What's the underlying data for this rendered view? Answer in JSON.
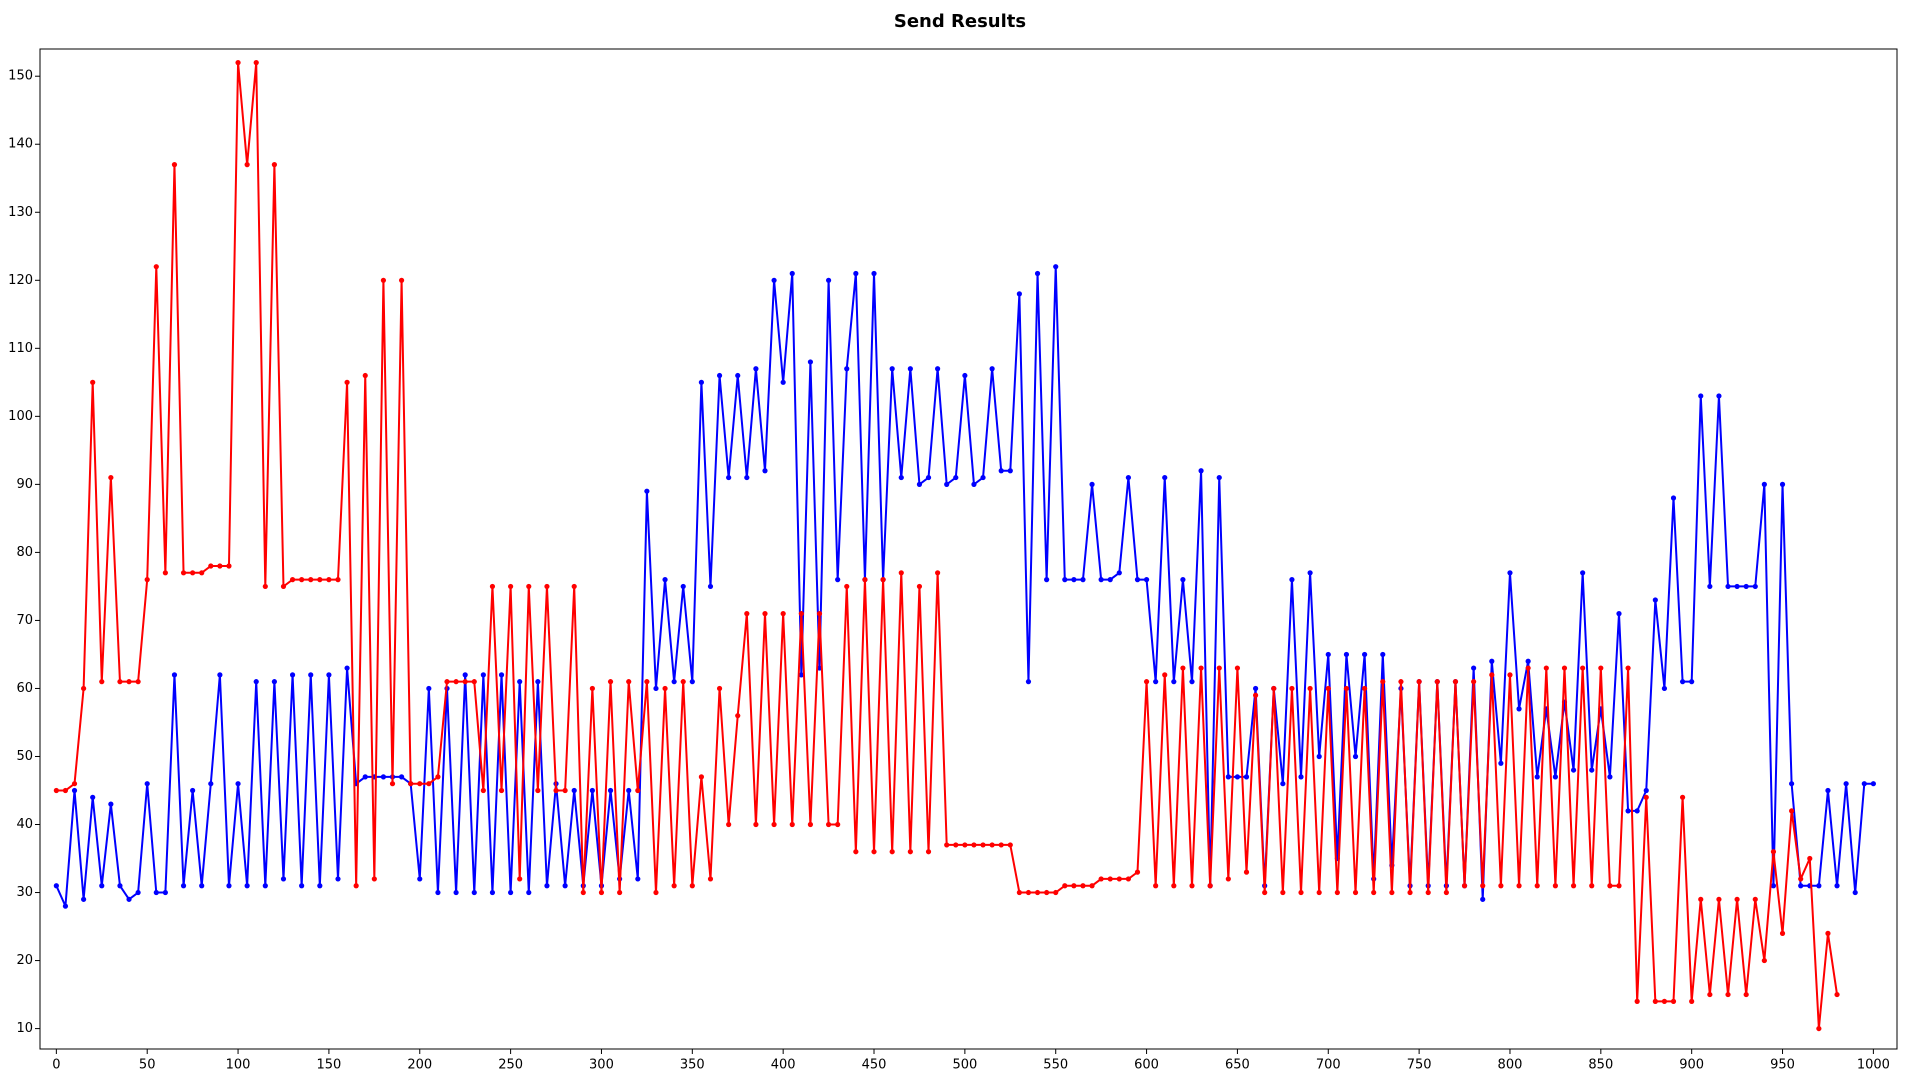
{
  "chart_data": {
    "type": "line",
    "title": "Send Results",
    "xlim": [
      -9,
      1013
    ],
    "ylim": [
      7,
      154
    ],
    "xticks": [
      0,
      50,
      100,
      150,
      200,
      250,
      300,
      350,
      400,
      450,
      500,
      550,
      600,
      650,
      700,
      750,
      800,
      850,
      900,
      950,
      1000
    ],
    "yticks": [
      10,
      20,
      30,
      40,
      50,
      60,
      70,
      80,
      90,
      100,
      110,
      120,
      130,
      140,
      150
    ],
    "series": [
      {
        "color": "#0000ff",
        "x": [
          0,
          5,
          10,
          15,
          20,
          25,
          30,
          35,
          40,
          45,
          50,
          55,
          60,
          65,
          70,
          75,
          80,
          85,
          90,
          95,
          100,
          105,
          110,
          115,
          120,
          125,
          130,
          135,
          140,
          145,
          150,
          155,
          160,
          165,
          170,
          175,
          180,
          185,
          190,
          195,
          200,
          205,
          210,
          215,
          220,
          225,
          230,
          235,
          240,
          245,
          250,
          255,
          260,
          265,
          270,
          275,
          280,
          285,
          290,
          295,
          300,
          305,
          310,
          315,
          320,
          325,
          330,
          335,
          340,
          345,
          350,
          355,
          360,
          365,
          370,
          375,
          380,
          385,
          390,
          395,
          400,
          405,
          410,
          415,
          420,
          425,
          430,
          435,
          440,
          445,
          450,
          455,
          460,
          465,
          470,
          475,
          480,
          485,
          490,
          495,
          500,
          505,
          510,
          515,
          520,
          525,
          530,
          535,
          540,
          545,
          550,
          555,
          560,
          565,
          570,
          575,
          580,
          585,
          590,
          595,
          600,
          605,
          610,
          615,
          620,
          625,
          630,
          635,
          640,
          645,
          650,
          655,
          660,
          665,
          670,
          675,
          680,
          685,
          690,
          695,
          700,
          705,
          710,
          715,
          720,
          725,
          730,
          735,
          740,
          745,
          750,
          755,
          760,
          765,
          770,
          775,
          780,
          785,
          790,
          795,
          800,
          805,
          810,
          815,
          820,
          825,
          830,
          835,
          840,
          845,
          850,
          855,
          860,
          865,
          870,
          875,
          880,
          885,
          890,
          895,
          900,
          905,
          910,
          915,
          920,
          925,
          930,
          935,
          940,
          945,
          950,
          955,
          960,
          965,
          970,
          975,
          980,
          985,
          990,
          995,
          1000
        ],
        "values": [
          31,
          28,
          45,
          29,
          44,
          31,
          43,
          31,
          29,
          30,
          46,
          30,
          30,
          62,
          31,
          45,
          31,
          46,
          62,
          31,
          46,
          31,
          61,
          31,
          61,
          32,
          62,
          31,
          62,
          31,
          62,
          32,
          63,
          46,
          47,
          47,
          47,
          47,
          47,
          46,
          32,
          60,
          30,
          60,
          30,
          62,
          30,
          62,
          30,
          62,
          30,
          61,
          30,
          61,
          31,
          46,
          31,
          45,
          31,
          45,
          31,
          45,
          32,
          45,
          32,
          89,
          60,
          76,
          61,
          75,
          61,
          105,
          75,
          106,
          91,
          106,
          91,
          107,
          92,
          120,
          105,
          121,
          62,
          108,
          63,
          120,
          76,
          107,
          121,
          76,
          121,
          76,
          107,
          91,
          107,
          90,
          91,
          107,
          90,
          91,
          106,
          90,
          91,
          107,
          92,
          92,
          118,
          61,
          121,
          76,
          122,
          76,
          76,
          76,
          90,
          76,
          76,
          77,
          91,
          76,
          76,
          61,
          91,
          61,
          76,
          61,
          92,
          31,
          91,
          47,
          47,
          47,
          60,
          31,
          60,
          46,
          76,
          47,
          77,
          50,
          65,
          35,
          65,
          50,
          65,
          32,
          65,
          34,
          60,
          31,
          61,
          31,
          61,
          31,
          61,
          31,
          63,
          29,
          64,
          49,
          77,
          57,
          64,
          47,
          57,
          47,
          58,
          48,
          77,
          48,
          57,
          47,
          71,
          42,
          42,
          45,
          73,
          60,
          88,
          61,
          61,
          103,
          75,
          103,
          75,
          75,
          75,
          75,
          90,
          31,
          90,
          46,
          31,
          31,
          31,
          45,
          31,
          46,
          30,
          46,
          46
        ]
      },
      {
        "color": "#ff0000",
        "x": [
          0,
          5,
          10,
          15,
          20,
          25,
          30,
          35,
          40,
          45,
          50,
          55,
          60,
          65,
          70,
          75,
          80,
          85,
          90,
          95,
          100,
          105,
          110,
          115,
          120,
          125,
          130,
          135,
          140,
          145,
          150,
          155,
          160,
          165,
          170,
          175,
          180,
          185,
          190,
          195,
          200,
          205,
          210,
          215,
          220,
          225,
          230,
          235,
          240,
          245,
          250,
          255,
          260,
          265,
          270,
          275,
          280,
          285,
          290,
          295,
          300,
          305,
          310,
          315,
          320,
          325,
          330,
          335,
          340,
          345,
          350,
          355,
          360,
          365,
          370,
          375,
          380,
          385,
          390,
          395,
          400,
          405,
          410,
          415,
          420,
          425,
          430,
          435,
          440,
          445,
          450,
          455,
          460,
          465,
          470,
          475,
          480,
          485,
          490,
          495,
          500,
          505,
          510,
          515,
          520,
          525,
          530,
          535,
          540,
          545,
          550,
          555,
          560,
          565,
          570,
          575,
          580,
          585,
          590,
          595,
          600,
          605,
          610,
          615,
          620,
          625,
          630,
          635,
          640,
          645,
          650,
          655,
          660,
          665,
          670,
          675,
          680,
          685,
          690,
          695,
          700,
          705,
          710,
          715,
          720,
          725,
          730,
          735,
          740,
          745,
          750,
          755,
          760,
          765,
          770,
          775,
          780,
          785,
          790,
          795,
          800,
          805,
          810,
          815,
          820,
          825,
          830,
          835,
          840,
          845,
          850,
          855,
          860,
          865,
          870,
          875,
          880,
          885,
          890,
          895,
          900,
          905,
          910,
          915,
          920,
          925,
          930,
          935,
          940,
          945,
          950,
          955,
          960,
          965,
          970,
          975,
          980
        ],
        "values": [
          45,
          45,
          46,
          60,
          105,
          61,
          91,
          61,
          61,
          61,
          76,
          122,
          77,
          137,
          77,
          77,
          77,
          78,
          78,
          78,
          152,
          137,
          152,
          75,
          137,
          75,
          76,
          76,
          76,
          76,
          76,
          76,
          105,
          31,
          106,
          32,
          120,
          46,
          120,
          46,
          46,
          46,
          47,
          61,
          61,
          61,
          61,
          45,
          75,
          45,
          75,
          32,
          75,
          45,
          75,
          45,
          45,
          75,
          30,
          60,
          30,
          61,
          30,
          61,
          45,
          61,
          30,
          60,
          31,
          61,
          31,
          47,
          32,
          60,
          40,
          56,
          71,
          40,
          71,
          40,
          71,
          40,
          71,
          40,
          71,
          40,
          40,
          75,
          36,
          76,
          36,
          76,
          36,
          77,
          36,
          75,
          36,
          77,
          37,
          37,
          37,
          37,
          37,
          37,
          37,
          37,
          30,
          30,
          30,
          30,
          30,
          31,
          31,
          31,
          31,
          32,
          32,
          32,
          32,
          33,
          61,
          31,
          62,
          31,
          63,
          31,
          63,
          31,
          63,
          32,
          63,
          33,
          59,
          30,
          60,
          30,
          60,
          30,
          60,
          30,
          60,
          30,
          60,
          30,
          60,
          30,
          61,
          30,
          61,
          30,
          61,
          30,
          61,
          30,
          61,
          31,
          61,
          31,
          62,
          31,
          62,
          31,
          63,
          31,
          63,
          31,
          63,
          31,
          63,
          31,
          63,
          31,
          31,
          63,
          14,
          44,
          14,
          14,
          14,
          44,
          14,
          29,
          15,
          29,
          15,
          29,
          15,
          29,
          20,
          36,
          24,
          42,
          32,
          35,
          10,
          24,
          15
        ]
      }
    ]
  }
}
